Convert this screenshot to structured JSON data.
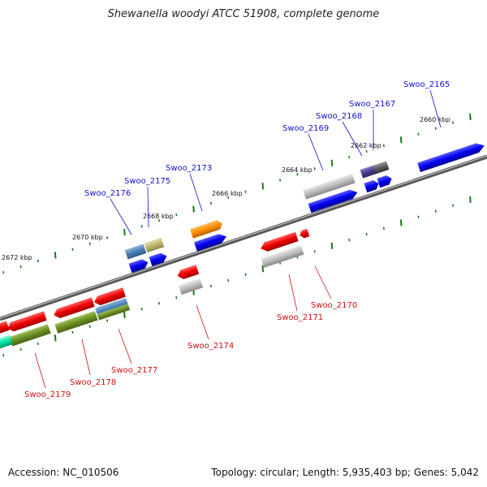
{
  "title": "Shewanella woodyi ATCC 51908, complete genome",
  "footer": {
    "accession": "Accession: NC_010506",
    "summary": "Topology: circular; Length: 5,935,403 bp; Genes: 5,042"
  },
  "colors": {
    "backbone": "#7a7a7a",
    "tick": "#1a7a1a",
    "forward_label": "#1010cc",
    "reverse_label": "#cc1010"
  },
  "kbp_labels": [
    "2660 kbp",
    "2662 kbp",
    "2664 kbp",
    "2666 kbp",
    "2668 kbp",
    "2670 kbp",
    "2672 kbp"
  ],
  "forward_genes": [
    "Swoo_2165",
    "Swoo_2167",
    "Swoo_2168",
    "Swoo_2169",
    "Swoo_2173",
    "Swoo_2175",
    "Swoo_2176"
  ],
  "reverse_genes": [
    "Swoo_2170",
    "Swoo_2171",
    "Swoo_2174",
    "Swoo_2177",
    "Swoo_2178",
    "Swoo_2179"
  ]
}
